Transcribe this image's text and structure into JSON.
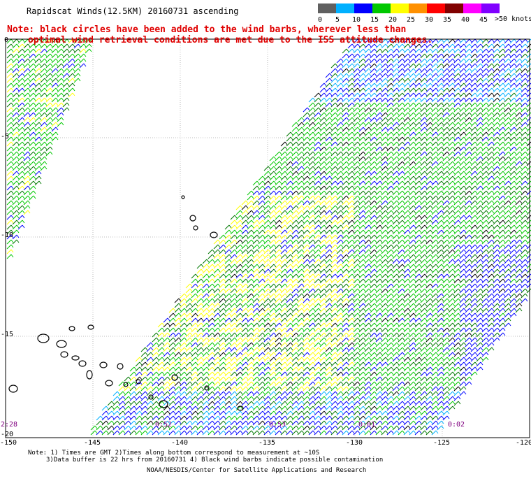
{
  "title": "Rapidscat Winds(12.5KM) 20160731 ascending",
  "note_line1": "Note: black circles have been added to the wind barbs, wherever less than",
  "note_line2": "optimal wind retrieval conditions are met due to the ISS attitude changes.",
  "speed_scale": {
    "labels": [
      "0",
      "5",
      "10",
      "15",
      "20",
      "25",
      "30",
      "35",
      "40",
      "45",
      ">50 knots"
    ],
    "colors": [
      "#606060",
      "#00b0ff",
      "#0000ff",
      "#00c800",
      "#ffff00",
      "#ff9000",
      "#ff0000",
      "#800000",
      "#ff00ff",
      "#8000ff"
    ]
  },
  "lat_labels": [
    "0",
    "-5",
    "-10",
    "-15",
    "-20"
  ],
  "lon_labels": [
    "-150",
    "-145",
    "-140",
    "-135",
    "-130",
    "-125",
    "-120"
  ],
  "time_labels": [
    "2:28",
    "0:52",
    "0:53",
    "0:01",
    "0:02"
  ],
  "footnote_line1": "Note: 1) Times are GMT 2)Times along bottom correspond to measurement at ~10S",
  "footnote_line2": "3)Data buffer is 22 hrs from 20160731 4) Black wind barbs indicate possible contamination",
  "credit": "NOAA/NESDIS/Center for Satellite Applications and Research"
}
